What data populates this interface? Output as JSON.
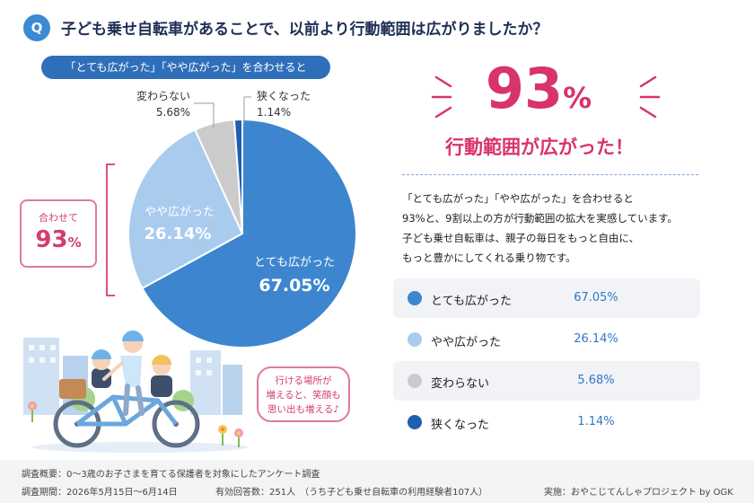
{
  "question": {
    "badge": "Q",
    "text": "子ども乗せ自転車があることで、以前より行動範囲は広がりましたか？"
  },
  "pill": "「とても広がった」「やや広がった」を合わせると",
  "combined": {
    "label": "合わせて",
    "value": "93",
    "unit": "%"
  },
  "highlight": {
    "value": "93",
    "unit": "%",
    "caption": "行動範囲が広がった！"
  },
  "description": [
    "「とても広がった」「やや広がった」を合わせると",
    "93%と、9割以上の方が行動範囲の拡大を実感しています。",
    "子ども乗せ自転車は、親子の毎日をもっと自由に、",
    "もっと豊かにしてくれる乗り物です。"
  ],
  "chart_data": {
    "type": "pie",
    "title": "子ども乗せ自転車があることで、以前より行動範囲は広がりましたか？",
    "categories": [
      "とても広がった",
      "やや広がった",
      "変わらない",
      "狭くなった"
    ],
    "values": [
      67.05,
      26.14,
      5.68,
      1.14
    ],
    "value_labels": [
      "67.05%",
      "26.14%",
      "5.68%",
      "1.14%"
    ],
    "colors": [
      "#3d86cf",
      "#a9cbee",
      "#cbcbcb",
      "#1e5fae"
    ],
    "legend_position": "right"
  },
  "speech_bubble": [
    "行ける場所が",
    "増えると、笑顔も",
    "思い出も増える♪"
  ],
  "footer": {
    "overview": "調査概要：0〜3歳のお子さまを育てる保護者を対象にしたアンケート調査",
    "period": "調査期間：2026年5月15日〜6月14日",
    "responses": "有効回答数：251人　（うち子ども乗せ自転車の利用経験者107人）",
    "credit": "実施：おやこじてんしゃプロジェクト by OGK"
  },
  "colors": {
    "accent_pink": "#d9336b",
    "navy": "#1e2f55",
    "blue": "#2f6fba"
  }
}
